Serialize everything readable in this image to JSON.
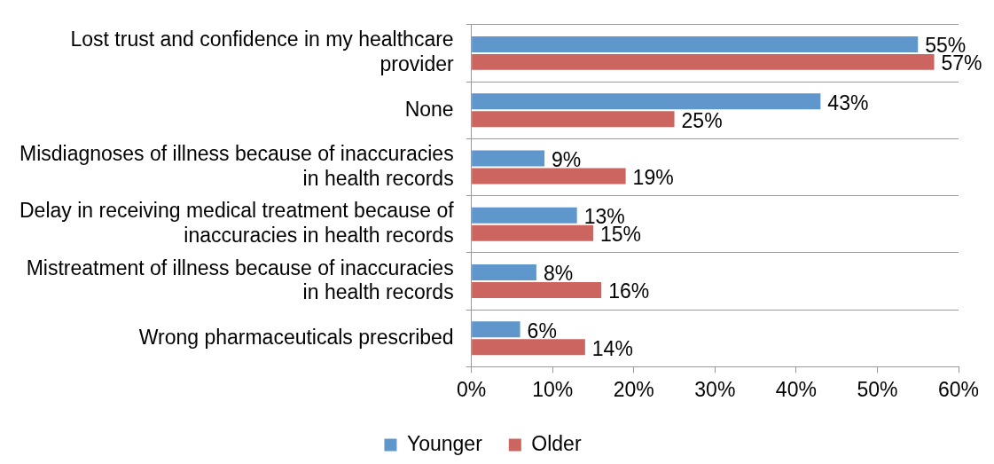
{
  "chart_data": {
    "type": "bar",
    "orientation": "horizontal",
    "categories": [
      "Lost trust and confidence in my healthcare provider",
      "None",
      "Misdiagnoses of illness because of inaccuracies in health records",
      "Delay in receiving medical treatment because of inaccuracies in health records",
      "Mistreatment of illness because of inaccuracies in health records",
      "Wrong pharmaceuticals prescribed"
    ],
    "series": [
      {
        "name": "Younger",
        "color": "#5f97cc",
        "values": [
          55,
          43,
          9,
          13,
          8,
          6
        ],
        "value_labels": [
          "55%",
          "43%",
          "9%",
          "13%",
          "8%",
          "6%"
        ]
      },
      {
        "name": "Older",
        "color": "#cc6460",
        "values": [
          57,
          25,
          19,
          15,
          16,
          14
        ],
        "value_labels": [
          "57%",
          "25%",
          "19%",
          "15%",
          "16%",
          "14%"
        ]
      }
    ],
    "xlim": [
      0,
      60
    ],
    "xticks": [
      {
        "value": 0,
        "label": "0%"
      },
      {
        "value": 10,
        "label": "10%"
      },
      {
        "value": 20,
        "label": "20%"
      },
      {
        "value": 30,
        "label": "30%"
      },
      {
        "value": 40,
        "label": "40%"
      },
      {
        "value": 50,
        "label": "50%"
      },
      {
        "value": 60,
        "label": "60%"
      }
    ],
    "grid": "y",
    "legend": "bottom"
  }
}
